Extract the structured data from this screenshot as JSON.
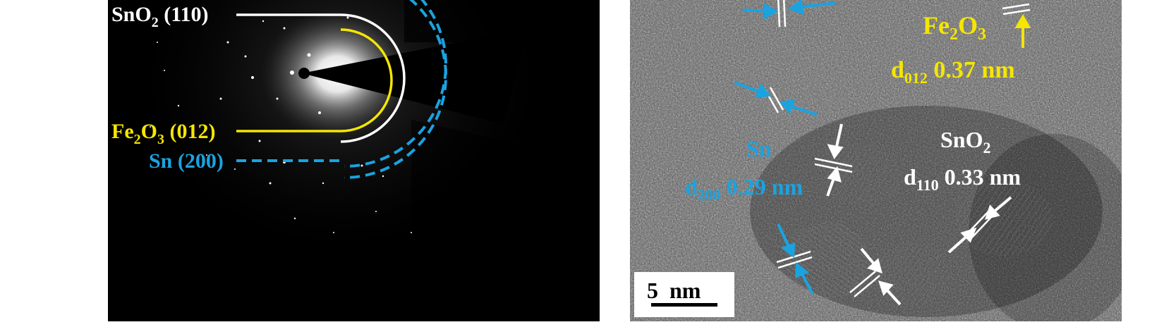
{
  "saed": {
    "label_sno2": {
      "main": "SnO",
      "sub": "2",
      "tail": " (110)"
    },
    "label_fe2o3": {
      "p1": "Fe",
      "s1": "2",
      "p2": "O",
      "s2": "3",
      "tail": " (012)"
    },
    "label_sn": "Sn (200)"
  },
  "hrtem": {
    "fe2o3": {
      "p1": "Fe",
      "s1": "2",
      "p2": "O",
      "s2": "3"
    },
    "fe2o3_d": {
      "d": "d",
      "sub": "012",
      "val": " 0.37 nm"
    },
    "sn": "Sn",
    "sn_d": {
      "d": "d",
      "sub": "200",
      "val": " 0.29 nm"
    },
    "sno2": {
      "main": "SnO",
      "sub": "2"
    },
    "sno2_d": {
      "d": "d",
      "sub": "110",
      "val": " 0.33 nm"
    },
    "scalebar": "5  nm"
  },
  "colors": {
    "yellow": "#f4e600",
    "cyan": "#1aa3e0",
    "white": "#ffffff"
  }
}
